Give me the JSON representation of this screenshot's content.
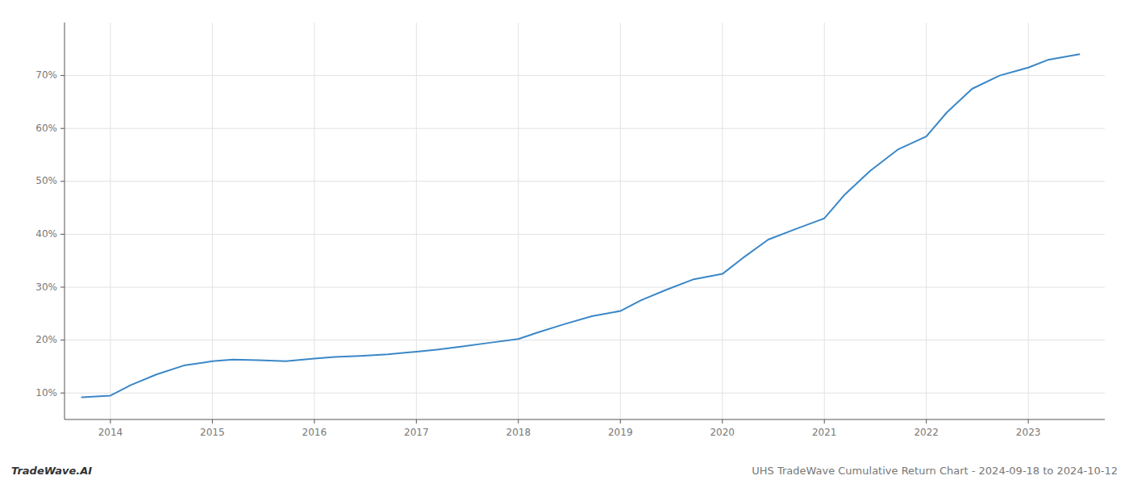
{
  "chart_data": {
    "type": "line",
    "x": [
      2013.72,
      2014.0,
      2014.2,
      2014.45,
      2014.72,
      2015.0,
      2015.2,
      2015.45,
      2015.72,
      2016.0,
      2016.2,
      2016.45,
      2016.72,
      2017.0,
      2017.2,
      2017.45,
      2017.72,
      2018.0,
      2018.2,
      2018.45,
      2018.72,
      2019.0,
      2019.2,
      2019.45,
      2019.72,
      2020.0,
      2020.2,
      2020.45,
      2020.72,
      2021.0,
      2021.2,
      2021.45,
      2021.72,
      2022.0,
      2022.2,
      2022.45,
      2022.72,
      2023.0,
      2023.2,
      2023.5
    ],
    "values": [
      9.2,
      9.5,
      11.5,
      13.5,
      15.2,
      16.0,
      16.3,
      16.2,
      16.0,
      16.5,
      16.8,
      17.0,
      17.3,
      17.8,
      18.2,
      18.8,
      19.5,
      20.2,
      21.5,
      23.0,
      24.5,
      25.5,
      27.5,
      29.5,
      31.5,
      32.5,
      35.5,
      39.0,
      41.0,
      43.0,
      47.5,
      52.0,
      56.0,
      58.5,
      63.0,
      67.5,
      70.0,
      71.5,
      73.0,
      74.0
    ],
    "color": "#3a87c8",
    "xlim": [
      2013.55,
      2023.75
    ],
    "xticks": [
      2014,
      2015,
      2016,
      2017,
      2018,
      2019,
      2020,
      2021,
      2022,
      2023
    ],
    "ylim": [
      5,
      80
    ],
    "yticks": [
      {
        "value": 10,
        "label": "10%"
      },
      {
        "value": 20,
        "label": "20%"
      },
      {
        "value": 30,
        "label": "30%"
      },
      {
        "value": 40,
        "label": "40%"
      },
      {
        "value": 50,
        "label": "50%"
      },
      {
        "value": 60,
        "label": "60%"
      },
      {
        "value": 70,
        "label": "70%"
      }
    ],
    "grid": true,
    "annotations": [
      "TradeWave.AI",
      "UHS TradeWave Cumulative Return Chart - 2024-09-18 to 2024-10-12"
    ]
  }
}
